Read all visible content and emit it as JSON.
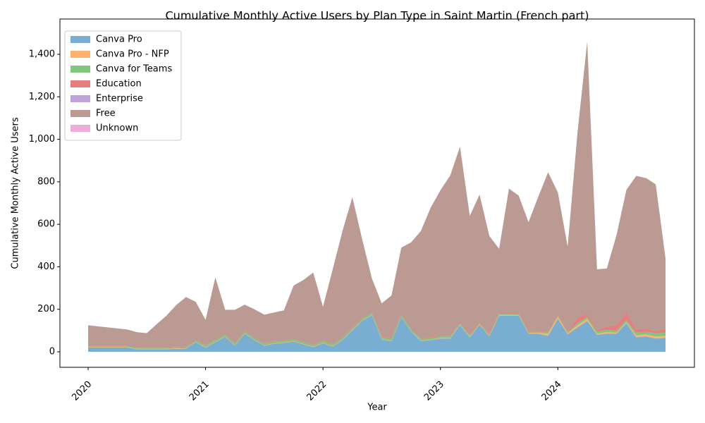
{
  "chart_data": {
    "type": "stacked-area",
    "title": "Cumulative Monthly Active Users by Plan Type in Saint Martin (French part)",
    "xlabel": "Year",
    "ylabel": "Cumulative Monthly Active Users",
    "categories": [
      "2020",
      null,
      null,
      null,
      null,
      null,
      null,
      null,
      null,
      null,
      null,
      null,
      "2021",
      null,
      null,
      null,
      null,
      null,
      null,
      null,
      null,
      null,
      null,
      null,
      "2022",
      null,
      null,
      null,
      null,
      null,
      null,
      null,
      null,
      null,
      null,
      null,
      "2023",
      null,
      null,
      null,
      null,
      null,
      null,
      null,
      null,
      null,
      null,
      null,
      "2024",
      null,
      null,
      null,
      null,
      null,
      null,
      null,
      null,
      null,
      null,
      null
    ],
    "ylim": [
      -73,
      1566
    ],
    "yticks": [
      0,
      200,
      400,
      600,
      800,
      {
        "value": 1000,
        "label": "1,000"
      },
      {
        "value": 1200,
        "label": "1,200"
      },
      {
        "value": 1400,
        "label": "1,400"
      }
    ],
    "legend": "upper left",
    "opacity": 0.6,
    "series": [
      {
        "name": "Canva Pro",
        "color": "#1f77b4",
        "values": [
          20,
          20,
          20,
          20,
          20,
          12,
          12,
          12,
          12,
          14,
          15,
          45,
          20,
          45,
          70,
          28,
          85,
          55,
          28,
          38,
          42,
          48,
          35,
          22,
          40,
          25,
          55,
          100,
          145,
          172,
          58,
          50,
          162,
          95,
          50,
          55,
          62,
          62,
          125,
          68,
          128,
          72,
          170,
          170,
          170,
          85,
          85,
          75,
          155,
          82,
          115,
          145,
          80,
          85,
          85,
          135,
          68,
          72,
          62,
          65
        ]
      },
      {
        "name": "Canva Pro - NFP",
        "color": "#ff7f0e",
        "values": [
          2,
          2,
          2,
          2,
          2,
          2,
          2,
          2,
          2,
          2,
          2,
          2,
          2,
          2,
          2,
          2,
          2,
          2,
          2,
          2,
          2,
          2,
          2,
          2,
          2,
          2,
          2,
          2,
          2,
          2,
          2,
          2,
          2,
          2,
          2,
          2,
          3,
          3,
          3,
          3,
          3,
          3,
          3,
          3,
          3,
          3,
          5,
          10,
          10,
          5,
          10,
          10,
          5,
          8,
          5,
          5,
          10,
          10,
          10,
          10
        ]
      },
      {
        "name": "Canva for Teams",
        "color": "#2ca02c",
        "values": [
          5,
          5,
          5,
          5,
          5,
          5,
          5,
          5,
          5,
          5,
          5,
          5,
          8,
          8,
          8,
          8,
          8,
          8,
          8,
          8,
          8,
          8,
          8,
          8,
          8,
          8,
          8,
          8,
          8,
          8,
          8,
          8,
          8,
          8,
          8,
          8,
          5,
          5,
          5,
          5,
          5,
          5,
          5,
          5,
          5,
          5,
          5,
          5,
          5,
          5,
          10,
          10,
          10,
          10,
          10,
          10,
          12,
          12,
          15,
          15
        ]
      },
      {
        "name": "Education",
        "color": "#d62728",
        "values": [
          2,
          2,
          2,
          2,
          2,
          2,
          2,
          2,
          2,
          2,
          2,
          2,
          2,
          2,
          2,
          2,
          2,
          2,
          2,
          2,
          2,
          2,
          2,
          2,
          2,
          2,
          2,
          2,
          2,
          2,
          2,
          2,
          2,
          2,
          2,
          2,
          2,
          2,
          3,
          3,
          8,
          3,
          3,
          3,
          3,
          3,
          3,
          3,
          5,
          3,
          25,
          15,
          5,
          15,
          25,
          35,
          15,
          15,
          10,
          15
        ]
      },
      {
        "name": "Enterprise",
        "color": "#9467bd",
        "values": [
          0,
          0,
          0,
          0,
          0,
          0,
          0,
          0,
          0,
          0,
          0,
          0,
          0,
          0,
          0,
          0,
          0,
          0,
          0,
          0,
          0,
          0,
          0,
          0,
          0,
          0,
          0,
          0,
          0,
          0,
          0,
          0,
          0,
          0,
          0,
          0,
          0,
          0,
          0,
          0,
          0,
          0,
          0,
          0,
          0,
          0,
          0,
          0,
          0,
          0,
          0,
          0,
          0,
          0,
          0,
          0,
          0,
          0,
          0,
          0
        ]
      },
      {
        "name": "Free",
        "color": "#8c564b",
        "values": [
          96,
          91,
          86,
          81,
          76,
          71,
          67,
          109,
          149,
          197,
          234,
          181,
          118,
          293,
          116,
          158,
          125,
          133,
          135,
          135,
          141,
          252,
          291,
          339,
          160,
          353,
          503,
          616,
          373,
          161,
          158,
          203,
          316,
          408,
          506,
          611,
          688,
          758,
          829,
          561,
          596,
          462,
          304,
          587,
          554,
          514,
          632,
          752,
          575,
          400,
          870,
          1280,
          288,
          274,
          425,
          577,
          723,
          709,
          691,
          335
        ]
      },
      {
        "name": "Unknown",
        "color": "#e377c2",
        "values": [
          0,
          0,
          0,
          0,
          0,
          0,
          0,
          0,
          0,
          0,
          0,
          0,
          0,
          0,
          0,
          0,
          0,
          0,
          0,
          0,
          0,
          0,
          0,
          0,
          0,
          0,
          0,
          0,
          0,
          0,
          0,
          0,
          0,
          0,
          0,
          0,
          0,
          0,
          0,
          0,
          0,
          0,
          0,
          0,
          0,
          0,
          0,
          0,
          0,
          0,
          0,
          0,
          0,
          0,
          0,
          0,
          0,
          0,
          0,
          0
        ]
      }
    ]
  }
}
